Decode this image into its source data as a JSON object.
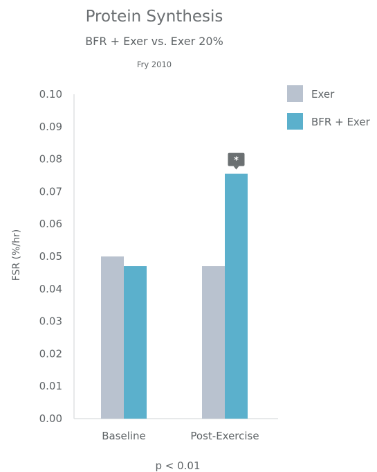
{
  "chart_data": {
    "type": "bar",
    "title": "Protein Synthesis",
    "subtitle": "BFR + Exer vs. Exer 20%",
    "source": "Fry 2010",
    "ylabel": "FSR (%/hr)",
    "xlabel": "",
    "ylim": [
      0,
      0.1
    ],
    "yticks": [
      "0.00",
      "0.01",
      "0.02",
      "0.03",
      "0.04",
      "0.05",
      "0.06",
      "0.07",
      "0.08",
      "0.09",
      "0.10"
    ],
    "categories": [
      "Baseline",
      "Post-Exercise"
    ],
    "series": [
      {
        "name": "Exer",
        "values": [
          0.05,
          0.047
        ],
        "color": "#b9c2cf"
      },
      {
        "name": "BFR + Exer",
        "values": [
          0.047,
          0.0755
        ],
        "color": "#5bb0cc"
      }
    ],
    "significance": {
      "label": "*",
      "category_index": 1,
      "series_index": 1,
      "color": "#6b7072"
    },
    "legend_position": "top-right",
    "grid": false,
    "footnote": "p < 0.01"
  }
}
